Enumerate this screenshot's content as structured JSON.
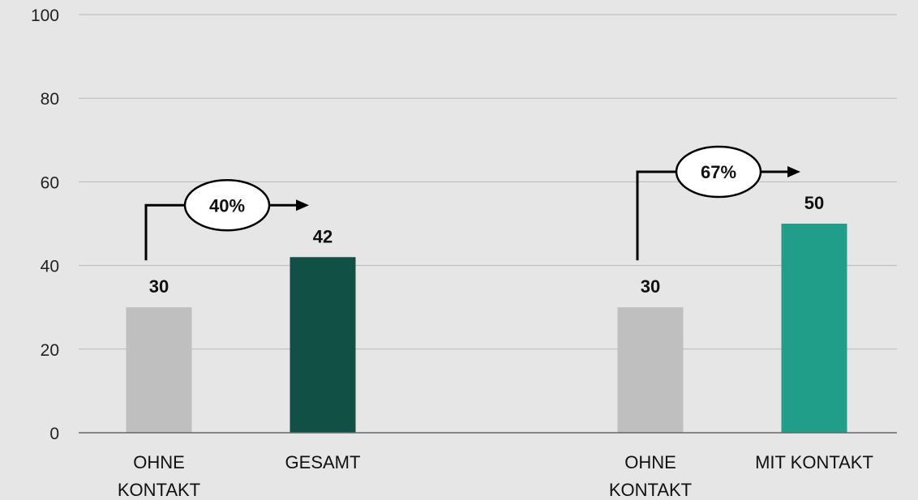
{
  "chart_data": {
    "type": "bar",
    "title": "",
    "xlabel": "",
    "ylabel": "",
    "ylim": [
      0,
      100
    ],
    "yticks": [
      0,
      20,
      40,
      60,
      80,
      100
    ],
    "grid": true,
    "categories": [
      {
        "lines": [
          "OHNE",
          "KONTAKT"
        ],
        "value": 30,
        "value_label": "30",
        "color": "#bfbfbf"
      },
      {
        "lines": [
          "GESAMT"
        ],
        "value": 42,
        "value_label": "42",
        "color": "#115044"
      },
      {
        "lines": [
          "OHNE",
          "KONTAKT"
        ],
        "value": 30,
        "value_label": "30",
        "color": "#bfbfbf"
      },
      {
        "lines": [
          "MIT KONTAKT"
        ],
        "value": 50,
        "value_label": "50",
        "color": "#209e89"
      }
    ],
    "annotations": [
      {
        "label": "40%",
        "from_index": 0,
        "to_index": 1
      },
      {
        "label": "67%",
        "from_index": 2,
        "to_index": 3
      }
    ]
  }
}
